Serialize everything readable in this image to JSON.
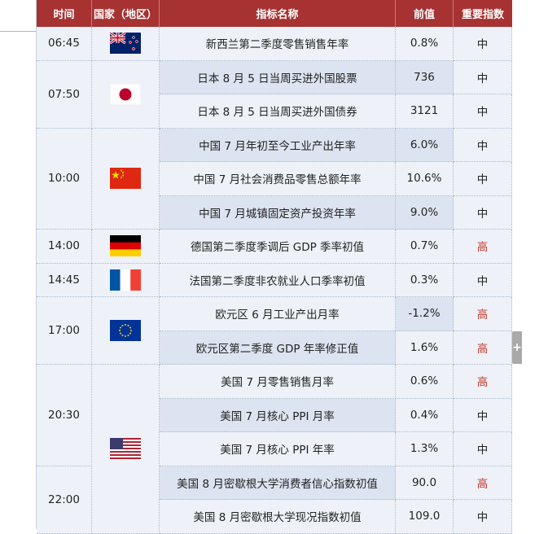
{
  "headers": {
    "time": "时间",
    "country": "国家（地区）",
    "indicator": "指标名称",
    "previous": "前值",
    "importance": "重要指数"
  },
  "groups": [
    {
      "time": "06:45",
      "flag": "new-zealand"
    },
    {
      "time": "07:50",
      "flag": "japan"
    },
    {
      "time": "10:00",
      "flag": "china"
    },
    {
      "time": "14:00",
      "flag": "germany"
    },
    {
      "time": "14:45",
      "flag": "france"
    },
    {
      "time": "17:00",
      "flag": "eurozone"
    },
    {
      "time": "20:30",
      "flag": "usa"
    },
    {
      "time": "22:00",
      "flag": ""
    }
  ],
  "rows": [
    {
      "indicator": "新西兰第二季度零售销售年率",
      "previous": "0.8%",
      "importance": "中"
    },
    {
      "indicator": "日本 8 月 5 日当周买进外国股票",
      "previous": "736",
      "importance": "中"
    },
    {
      "indicator": "日本 8 月 5 日当周买进外国债券",
      "previous": "3121",
      "importance": "中"
    },
    {
      "indicator": "中国 7 月年初至今工业产出年率",
      "previous": "6.0%",
      "importance": "中"
    },
    {
      "indicator": "中国 7 月社会消费品零售总额年率",
      "previous": "10.6%",
      "importance": "中"
    },
    {
      "indicator": "中国 7 月城镇固定资产投资年率",
      "previous": "9.0%",
      "importance": "中"
    },
    {
      "indicator": "德国第二季度季调后 GDP 季率初值",
      "previous": "0.7%",
      "importance": "高"
    },
    {
      "indicator": "法国第二季度非农就业人口季率初值",
      "previous": "0.3%",
      "importance": "中"
    },
    {
      "indicator": "欧元区 6 月工业产出月率",
      "previous": "-1.2%",
      "importance": "高"
    },
    {
      "indicator": "欧元区第二季度 GDP 年率修正值",
      "previous": "1.6%",
      "importance": "高"
    },
    {
      "indicator": "美国 7 月零售销售月率",
      "previous": "0.6%",
      "importance": "高"
    },
    {
      "indicator": "美国 7 月核心 PPI 月率",
      "previous": "0.4%",
      "importance": "中"
    },
    {
      "indicator": "美国 7 月核心 PPI 年率",
      "previous": "1.3%",
      "importance": "中"
    },
    {
      "indicator": "美国 8 月密歇根大学消费者信心指数初值",
      "previous": "90.0",
      "importance": "高"
    },
    {
      "indicator": "美国 8 月密歇根大学现况指数初值",
      "previous": "109.0",
      "importance": "中"
    }
  ],
  "colors": {
    "header_bg": "#a63232",
    "row_light": "#eef2f8",
    "row_blue": "#dbe4f0",
    "high_importance": "#c0392b"
  },
  "expand_icon": "plus-icon",
  "expand_label": "+"
}
